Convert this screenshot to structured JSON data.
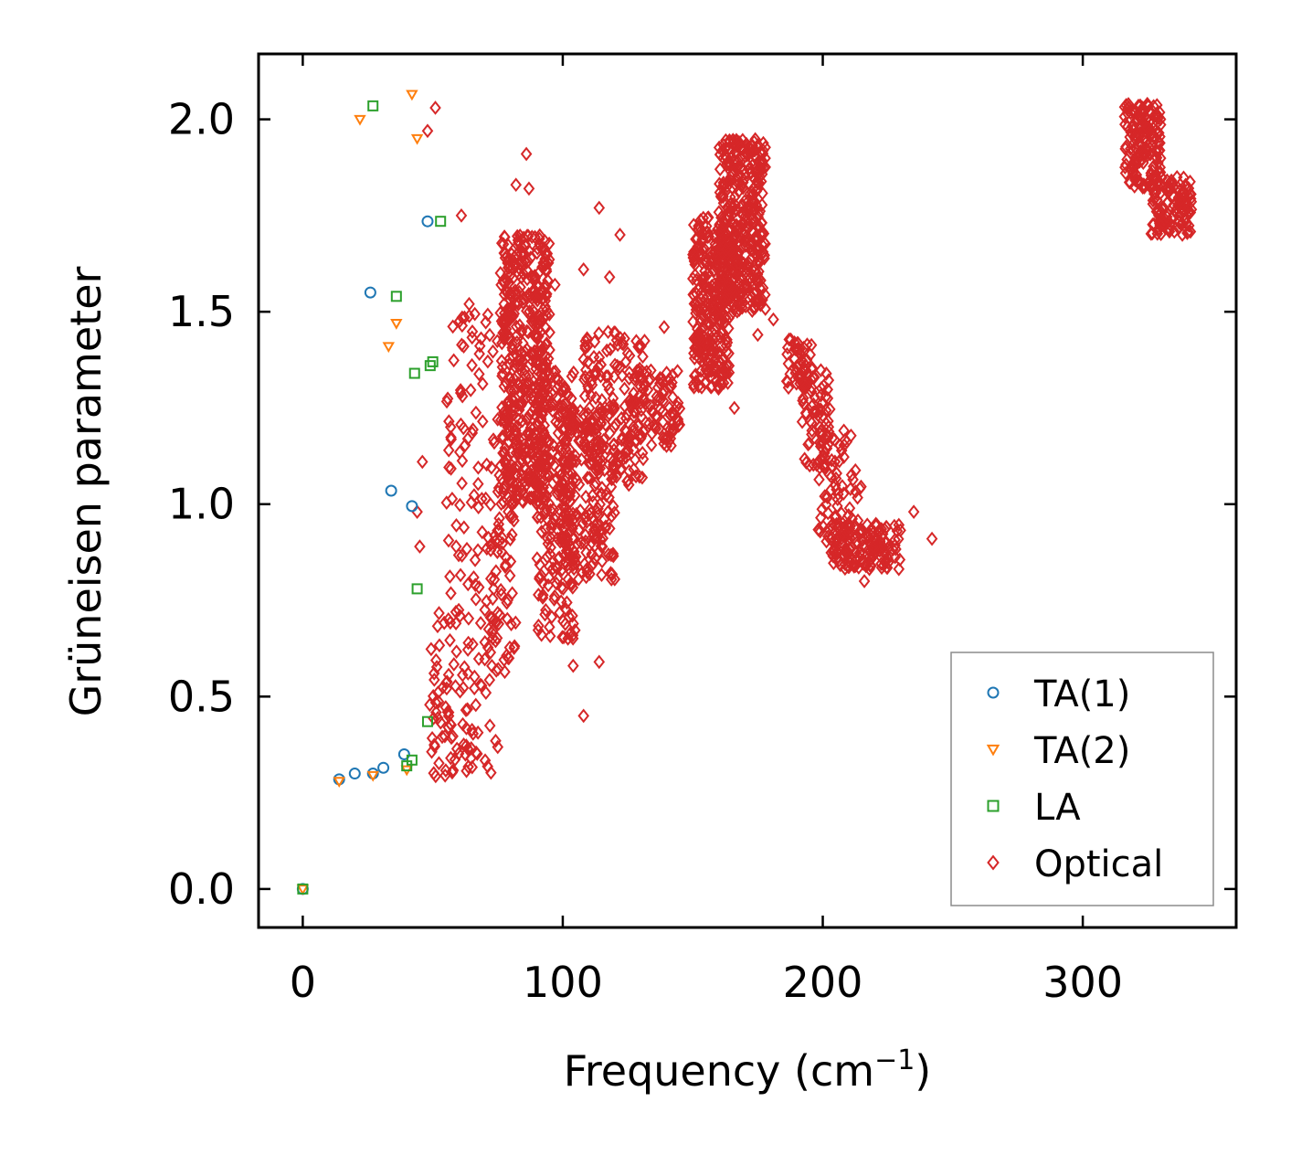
{
  "chart_data": {
    "type": "scatter",
    "xlabel": "Frequency (cm",
    "xlabel_sup": "−1",
    "xlabel_close": ")",
    "ylabel": "Grüneisen parameter",
    "xlim": [
      -17,
      359
    ],
    "ylim": [
      -0.1,
      2.17
    ],
    "xticks": [
      0,
      100,
      200,
      300
    ],
    "xtick_labels": [
      "0",
      "100",
      "200",
      "300"
    ],
    "yticks": [
      0.0,
      0.5,
      1.0,
      1.5,
      2.0
    ],
    "ytick_labels": [
      "0.0",
      "0.5",
      "1.0",
      "1.5",
      "2.0"
    ],
    "grid": false,
    "legend_position": "bottom-right",
    "series": [
      {
        "name": "TA(1)",
        "marker": "circle",
        "color": "#1f77b4",
        "x": [
          0,
          14,
          20,
          27,
          31,
          26,
          34,
          39,
          42,
          48
        ],
        "y": [
          0.0,
          0.285,
          0.3,
          0.3,
          0.315,
          1.55,
          1.035,
          0.35,
          0.995,
          1.735
        ]
      },
      {
        "name": "TA(2)",
        "marker": "triangle-down",
        "color": "#ff7f0e",
        "x": [
          0,
          14,
          27,
          22,
          36,
          33,
          40,
          42,
          44
        ],
        "y": [
          0.0,
          0.28,
          0.295,
          2.0,
          1.47,
          1.41,
          0.31,
          2.065,
          1.95
        ]
      },
      {
        "name": "LA",
        "marker": "square",
        "color": "#2ca02c",
        "x": [
          0,
          27,
          36,
          43,
          44,
          40,
          48,
          49,
          50,
          53,
          42
        ],
        "y": [
          0.0,
          2.035,
          1.54,
          1.34,
          0.78,
          0.32,
          0.435,
          1.36,
          1.37,
          1.735,
          0.335
        ]
      },
      {
        "name": "Optical",
        "marker": "diamond",
        "color": "#d62728",
        "clusters": [
          {
            "x": [
              47,
              58
            ],
            "y": [
              0.29,
              0.75
            ],
            "n": 40
          },
          {
            "x": [
              55,
              75
            ],
            "y": [
              0.3,
              0.7
            ],
            "n": 60
          },
          {
            "x": [
              55,
              80
            ],
            "y": [
              0.7,
              1.5
            ],
            "n": 110
          },
          {
            "x": [
              70,
              82
            ],
            "y": [
              0.55,
              1.0
            ],
            "n": 60
          },
          {
            "x": [
              76,
              95
            ],
            "y": [
              1.0,
              1.7
            ],
            "n": 500
          },
          {
            "x": [
              90,
              105
            ],
            "y": [
              0.65,
              1.35
            ],
            "n": 200
          },
          {
            "x": [
              98,
              120
            ],
            "y": [
              0.8,
              1.25
            ],
            "n": 220
          },
          {
            "x": [
              108,
              132
            ],
            "y": [
              1.05,
              1.45
            ],
            "n": 160
          },
          {
            "x": [
              125,
              145
            ],
            "y": [
              1.15,
              1.35
            ],
            "n": 100
          },
          {
            "x": [
              150,
              165
            ],
            "y": [
              1.3,
              1.75
            ],
            "n": 300
          },
          {
            "x": [
              160,
              178
            ],
            "y": [
              1.5,
              1.95
            ],
            "n": 400
          },
          {
            "x": [
              186,
              196
            ],
            "y": [
              1.3,
              1.43
            ],
            "n": 50
          },
          {
            "x": [
              192,
              203
            ],
            "y": [
              1.1,
              1.35
            ],
            "n": 60
          },
          {
            "x": [
              198,
              215
            ],
            "y": [
              0.9,
              1.2
            ],
            "n": 80
          },
          {
            "x": [
              203,
              230
            ],
            "y": [
              0.83,
              0.95
            ],
            "n": 150
          },
          {
            "x": [
              316,
              330
            ],
            "y": [
              1.82,
              2.04
            ],
            "n": 160
          },
          {
            "x": [
              326,
              342
            ],
            "y": [
              1.7,
              1.85
            ],
            "n": 120
          }
        ],
        "x": [
          51,
          48,
          61,
          46,
          44,
          45,
          86,
          82,
          87,
          64,
          108,
          97,
          114,
          122,
          118,
          139,
          166,
          175,
          181,
          242,
          235,
          225,
          216,
          108,
          114,
          104,
          59,
          52,
          56
        ],
        "y": [
          2.03,
          1.97,
          1.75,
          1.11,
          0.98,
          0.89,
          1.91,
          1.83,
          1.82,
          1.52,
          1.61,
          1.57,
          1.77,
          1.7,
          1.59,
          1.46,
          1.25,
          1.44,
          1.48,
          0.91,
          0.98,
          0.86,
          0.8,
          0.45,
          0.59,
          0.58,
          0.89,
          0.51,
          0.42
        ]
      }
    ]
  }
}
